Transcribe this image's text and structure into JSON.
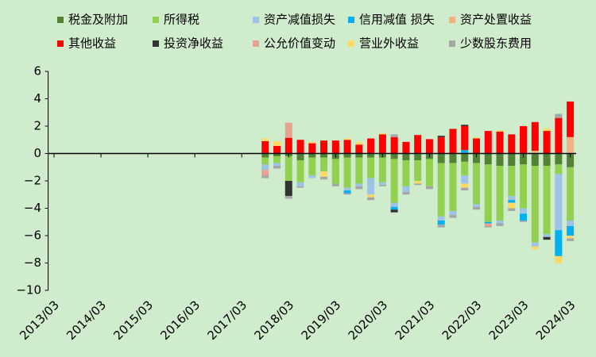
{
  "chart_data": {
    "type": "stacked_bar",
    "categories": [
      "2013/03",
      null,
      null,
      null,
      "2014/03",
      null,
      null,
      null,
      "2015/03",
      null,
      null,
      null,
      "2016/03",
      null,
      null,
      null,
      "2017/03",
      null,
      null,
      null,
      "2018/03",
      null,
      null,
      null,
      "2019/03",
      null,
      null,
      null,
      "2020/03",
      null,
      null,
      null,
      "2021/03",
      null,
      null,
      null,
      "2022/03",
      null,
      null,
      null,
      "2023/03",
      null,
      null,
      null,
      "2024/03"
    ],
    "ylim": [
      -10,
      6
    ],
    "yticks": [
      {
        "value": -10,
        "label": "−10"
      },
      {
        "value": -8,
        "label": "−8"
      },
      {
        "value": -6,
        "label": "−6"
      },
      {
        "value": -4,
        "label": "−4"
      },
      {
        "value": -2,
        "label": "−2"
      },
      0,
      2,
      4,
      6
    ],
    "legend": "top",
    "series": [
      {
        "name": "税金及附加",
        "color": "#548235",
        "values": [
          null,
          null,
          null,
          null,
          null,
          null,
          null,
          null,
          null,
          null,
          null,
          null,
          null,
          null,
          null,
          null,
          null,
          null,
          -0.3,
          -0.2,
          -0.2,
          -0.5,
          -0.3,
          -0.3,
          -0.4,
          -0.3,
          -0.3,
          -0.3,
          -0.3,
          -0.4,
          -0.5,
          -0.5,
          -0.4,
          -0.7,
          -0.7,
          -0.6,
          -0.7,
          -0.8,
          -0.9,
          -0.9,
          -0.8,
          -0.9,
          -0.9,
          -0.8,
          -1.0
        ]
      },
      {
        "name": "所得税",
        "color": "#92d050",
        "values": [
          null,
          null,
          null,
          null,
          null,
          null,
          null,
          null,
          null,
          null,
          null,
          null,
          null,
          null,
          null,
          null,
          null,
          null,
          -0.5,
          -0.5,
          -1.8,
          -1.6,
          -1.3,
          -1.0,
          -1.8,
          -2.2,
          -1.9,
          -1.5,
          -1.8,
          -3.2,
          -1.9,
          -1.5,
          -2.0,
          -3.9,
          -3.5,
          -1.0,
          -3.0,
          -4.2,
          -4.0,
          -2.2,
          -3.2,
          -5.6,
          -5.0,
          -0.7,
          -3.9
        ]
      },
      {
        "name": "资产减值损失",
        "color": "#9dc3e6",
        "values": [
          null,
          null,
          null,
          null,
          null,
          null,
          null,
          null,
          null,
          null,
          null,
          null,
          null,
          null,
          null,
          null,
          null,
          null,
          -0.4,
          -0.2,
          0,
          -0.3,
          -0.2,
          0,
          0,
          -0.2,
          -0.2,
          -1.2,
          -0.2,
          -0.3,
          -0.4,
          0,
          0,
          -0.3,
          -0.3,
          -0.6,
          -0.2,
          0,
          -0.2,
          -0.3,
          -0.4,
          -0.3,
          -0.2,
          -4.1,
          -0.4
        ]
      },
      {
        "name": "信用减值 损失",
        "color": "#00b0f0",
        "values": [
          null,
          null,
          null,
          null,
          null,
          null,
          null,
          null,
          null,
          null,
          null,
          null,
          null,
          null,
          null,
          null,
          null,
          null,
          0,
          0,
          0,
          0,
          0,
          0,
          0,
          -0.2,
          0,
          0,
          0,
          -0.2,
          0,
          0,
          0,
          -0.3,
          0,
          0.25,
          0,
          -0.1,
          0,
          -0.2,
          -0.5,
          0,
          0,
          -1.9,
          -0.7
        ]
      },
      {
        "name": "资产处置收益",
        "color": "#f4b183",
        "values": [
          null,
          null,
          null,
          null,
          null,
          null,
          null,
          null,
          null,
          null,
          null,
          null,
          null,
          null,
          null,
          null,
          null,
          null,
          0,
          0,
          0,
          0,
          0,
          0,
          0,
          0,
          0,
          0,
          0,
          0,
          0,
          0,
          0,
          0,
          0,
          0,
          0,
          0,
          0,
          0,
          0,
          0.2,
          0,
          0,
          1.2
        ]
      },
      {
        "name": "其他收益",
        "color": "#ff0000",
        "values": [
          null,
          null,
          null,
          null,
          null,
          null,
          null,
          null,
          null,
          null,
          null,
          null,
          null,
          null,
          null,
          null,
          null,
          null,
          0.9,
          0.55,
          1.15,
          1.0,
          0.75,
          0.95,
          0.95,
          1.0,
          0.65,
          1.1,
          1.4,
          1.2,
          0.85,
          1.35,
          1.05,
          1.2,
          1.8,
          1.75,
          1.1,
          1.65,
          1.6,
          1.4,
          2.0,
          2.1,
          1.65,
          2.6,
          2.6
        ]
      },
      {
        "name": "投资净收益",
        "color": "#333333",
        "values": [
          null,
          null,
          null,
          null,
          null,
          null,
          null,
          null,
          null,
          null,
          null,
          null,
          null,
          null,
          null,
          null,
          null,
          null,
          0,
          0,
          -1.1,
          0,
          0,
          0,
          0,
          0,
          0,
          0,
          0,
          -0.2,
          0,
          0,
          0,
          0.1,
          0,
          0.1,
          0,
          0,
          0,
          0,
          0,
          0,
          -0.2,
          0,
          0
        ]
      },
      {
        "name": "公允价值变动",
        "color": "#e9a190",
        "values": [
          null,
          null,
          null,
          null,
          null,
          null,
          null,
          null,
          null,
          null,
          null,
          null,
          null,
          null,
          null,
          null,
          null,
          null,
          -0.4,
          0,
          1.1,
          0,
          0,
          0,
          0,
          0,
          0,
          0,
          0,
          0,
          0,
          0,
          0,
          0,
          0,
          0,
          0,
          -0.2,
          0,
          0,
          0,
          0,
          0,
          0,
          0
        ]
      },
      {
        "name": "营业外收益",
        "color": "#ffd966",
        "values": [
          null,
          null,
          null,
          null,
          null,
          null,
          null,
          null,
          null,
          null,
          null,
          null,
          null,
          null,
          null,
          null,
          null,
          null,
          0.2,
          0.35,
          0,
          0,
          0.1,
          -0.4,
          0,
          0.1,
          0.2,
          -0.2,
          0.1,
          0,
          0,
          -0.2,
          0,
          0,
          0,
          -0.3,
          0.1,
          0,
          0.1,
          -0.4,
          0,
          -0.2,
          0.2,
          -0.5,
          -0.2
        ]
      },
      {
        "name": "少数股东费用",
        "color": "#a6a6a6",
        "values": [
          null,
          null,
          null,
          null,
          null,
          null,
          null,
          null,
          null,
          null,
          null,
          null,
          null,
          null,
          null,
          null,
          null,
          null,
          -0.2,
          -0.2,
          -0.2,
          -0.1,
          0,
          -0.2,
          -0.2,
          -0.1,
          -0.2,
          -0.2,
          -0.1,
          0.2,
          -0.2,
          -0.1,
          -0.2,
          -0.2,
          -0.2,
          -0.2,
          -0.2,
          -0.1,
          -0.2,
          -0.2,
          -0.1,
          0,
          0,
          0.3,
          -0.2
        ]
      }
    ]
  }
}
